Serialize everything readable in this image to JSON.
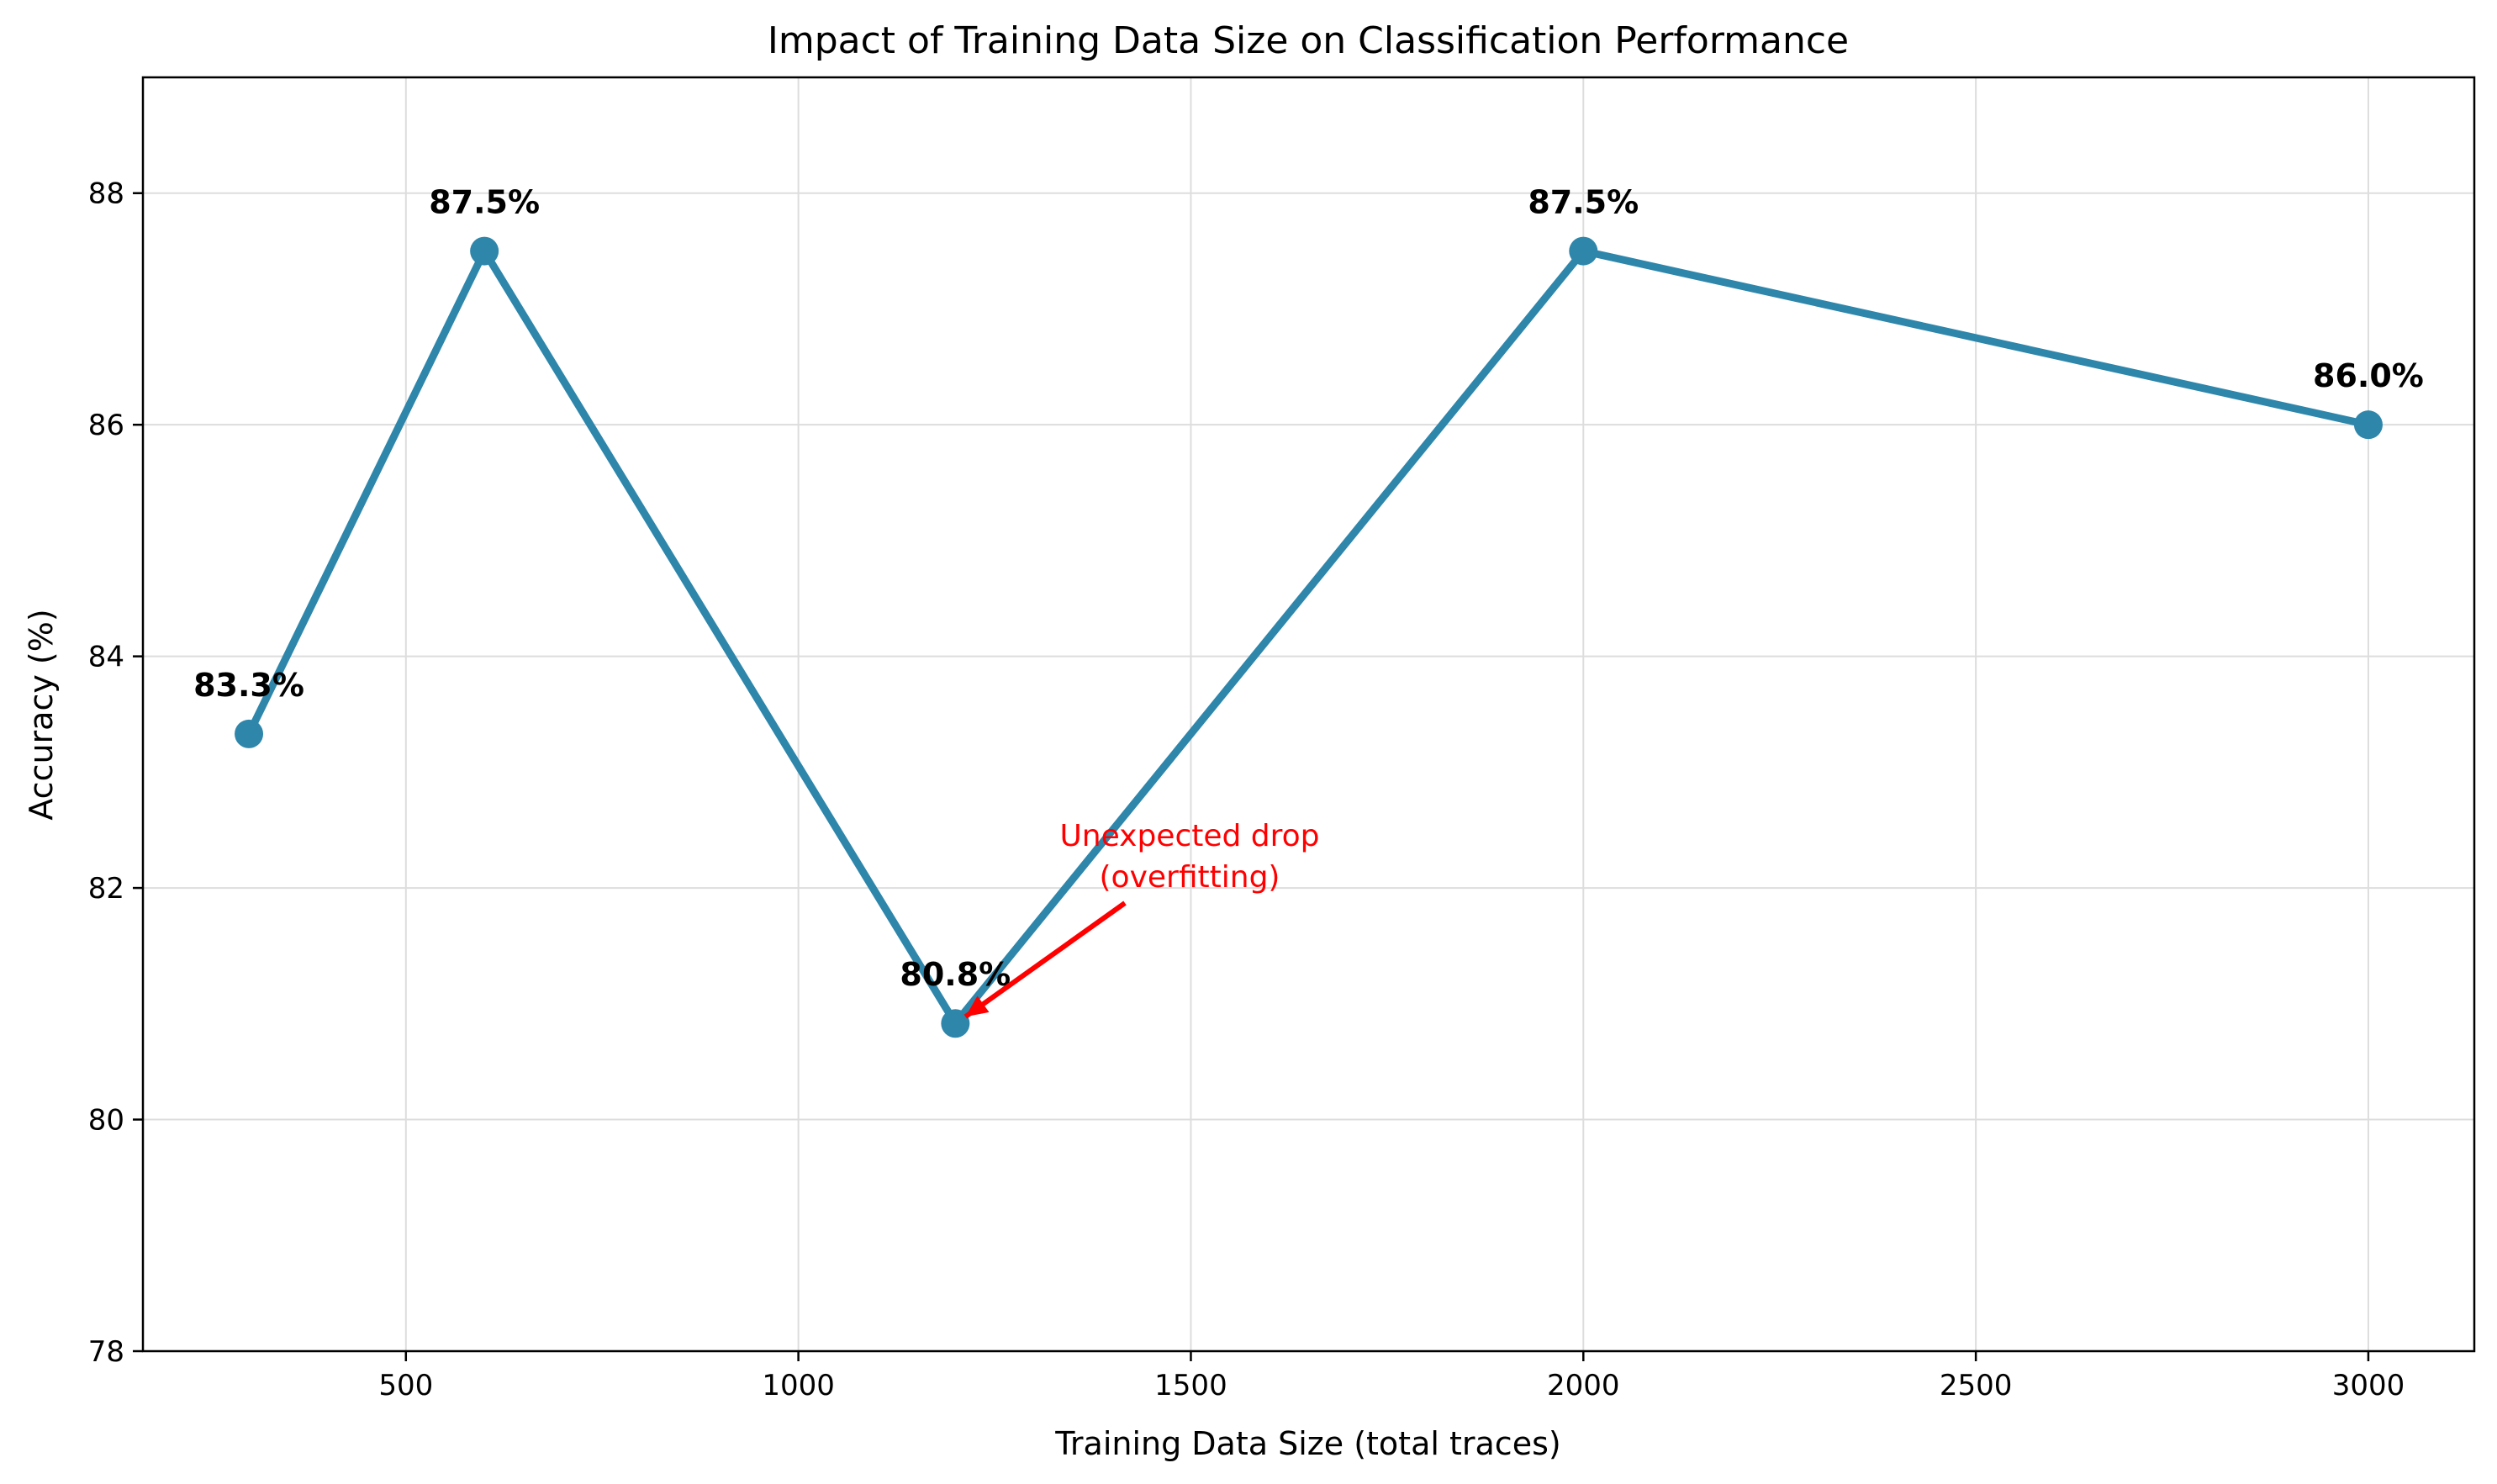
{
  "chart_data": {
    "type": "line",
    "title": "Impact of Training Data Size on Classification Performance",
    "xlabel": "Training Data Size (total traces)",
    "ylabel": "Accuracy (%)",
    "xlim": [
      165,
      3135
    ],
    "ylim": [
      78,
      89
    ],
    "xticks": [
      500,
      1000,
      1500,
      2000,
      2500,
      3000
    ],
    "yticks": [
      78,
      80,
      82,
      84,
      86,
      88
    ],
    "grid": true,
    "colors": {
      "series": "#2e86ab",
      "annotation": "#ff0000"
    },
    "series": [
      {
        "x": [
          300,
          600,
          1200,
          2000,
          3000
        ],
        "y": [
          83.33,
          87.5,
          80.83,
          87.5,
          86.0
        ],
        "labels": [
          "83.3%",
          "87.5%",
          "80.8%",
          "87.5%",
          "86.0%"
        ]
      }
    ],
    "annotation": {
      "lines": [
        "Unexpected drop",
        "(overfitting)"
      ],
      "point_x": 1200,
      "point_y": 80.83
    }
  }
}
